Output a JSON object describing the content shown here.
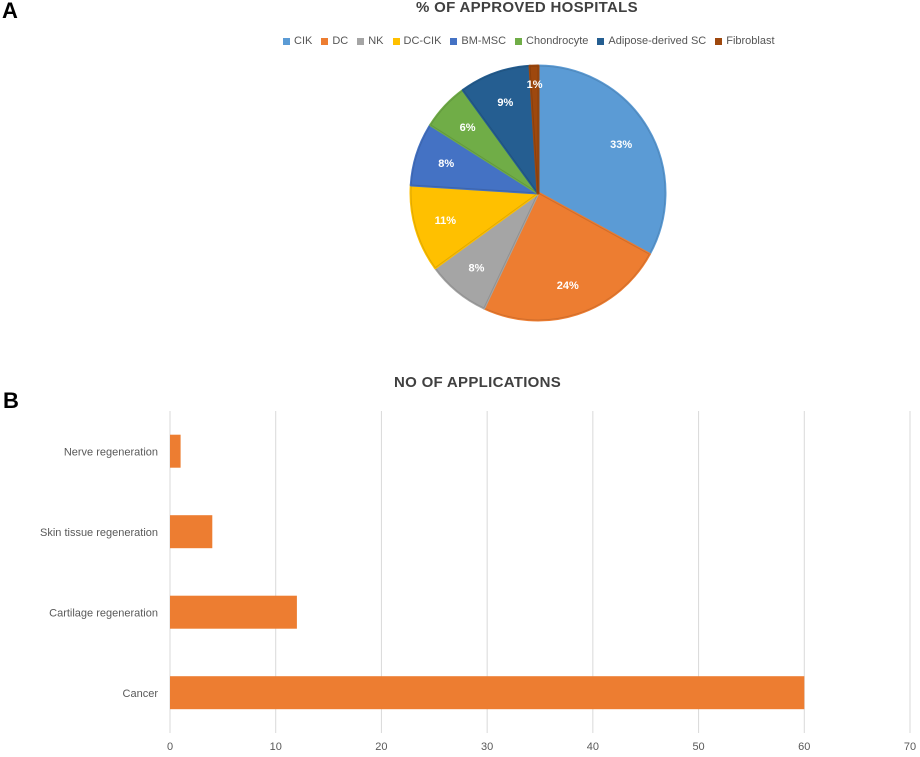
{
  "panels": {
    "a_letter": "A",
    "b_letter": "B"
  },
  "chart_data": [
    {
      "type": "pie",
      "title": "% OF APPROVED HOSPITALS",
      "categories": [
        "CIK",
        "DC",
        "NK",
        "DC-CIK",
        "BM-MSC",
        "Chondrocyte",
        "Adipose-derived SC",
        "Fibroblast"
      ],
      "values": [
        33,
        24,
        8,
        11,
        8,
        6,
        9,
        1
      ],
      "labels": [
        "33%",
        "24%",
        "8%",
        "11%",
        "8%",
        "6%",
        "9%",
        "1%"
      ],
      "colors": [
        "#5b9bd5",
        "#ed7d31",
        "#a5a5a5",
        "#ffc000",
        "#4472c4",
        "#70ad47",
        "#255e91",
        "#9e480e"
      ],
      "legend_position": "top"
    },
    {
      "type": "bar",
      "orientation": "horizontal",
      "title": "NO OF APPLICATIONS",
      "categories": [
        "Cancer",
        "Cartilage regeneration",
        "Skin tissue regeneration",
        "Nerve regeneration"
      ],
      "values": [
        60,
        12,
        4,
        1
      ],
      "xlim": [
        0,
        70
      ],
      "xticks": [
        "0",
        "10",
        "20",
        "30",
        "40",
        "50",
        "60",
        "70"
      ],
      "xlabel": "",
      "ylabel": "",
      "color": "#ed7d31",
      "grid": true
    }
  ]
}
